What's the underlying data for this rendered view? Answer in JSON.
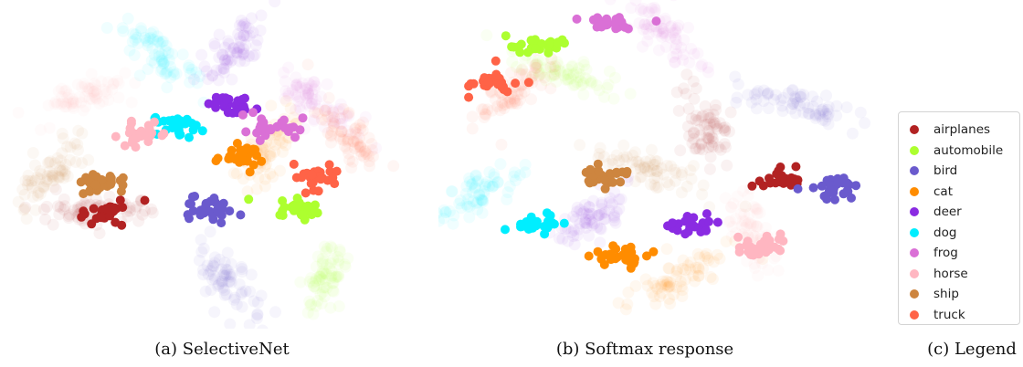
{
  "chart_data": [
    {
      "type": "scatter",
      "caption": "(a) SelectiveNet",
      "x_range": [
        -100,
        100
      ],
      "y_range": [
        -100,
        100
      ],
      "grid": false,
      "clusters": [
        {
          "class": "airplanes",
          "faint": [
            -55,
            -30
          ],
          "bright": [
            -52,
            -32
          ]
        },
        {
          "class": "automobile",
          "faint": [
            55,
            -75
          ],
          "bright": [
            42,
            -28
          ]
        },
        {
          "class": "bird",
          "faint": [
            5,
            -75
          ],
          "bright": [
            -3,
            -30
          ]
        },
        {
          "class": "cat",
          "faint": [
            26,
            10
          ],
          "bright": [
            12,
            5
          ]
        },
        {
          "class": "deer",
          "faint": [
            10,
            75
          ],
          "bright": [
            8,
            40
          ]
        },
        {
          "class": "dog",
          "faint": [
            -28,
            72
          ],
          "bright": [
            -18,
            25
          ]
        },
        {
          "class": "frog",
          "faint": [
            50,
            40
          ],
          "bright": [
            25,
            25
          ]
        },
        {
          "class": "horse",
          "faint": [
            -65,
            45
          ],
          "bright": [
            -35,
            20
          ]
        },
        {
          "class": "ship",
          "faint": [
            -80,
            -5
          ],
          "bright": [
            -55,
            -12
          ]
        },
        {
          "class": "truck",
          "faint": [
            65,
            20
          ],
          "bright": [
            50,
            -8
          ]
        }
      ]
    },
    {
      "type": "scatter",
      "caption": "(b) Softmax response",
      "x_range": [
        -100,
        100
      ],
      "y_range": [
        -100,
        100
      ],
      "grid": false,
      "clusters": [
        {
          "class": "airplanes",
          "faint": [
            18,
            25
          ],
          "bright": [
            55,
            -10
          ]
        },
        {
          "class": "automobile",
          "faint": [
            -48,
            60
          ],
          "bright": [
            -60,
            78
          ]
        },
        {
          "class": "bird",
          "faint": [
            60,
            40
          ],
          "bright": [
            78,
            -15
          ]
        },
        {
          "class": "cat",
          "faint": [
            5,
            -75
          ],
          "bright": [
            -22,
            -60
          ]
        },
        {
          "class": "deer",
          "faint": [
            -35,
            -35
          ],
          "bright": [
            10,
            -40
          ]
        },
        {
          "class": "dog",
          "faint": [
            -90,
            -20
          ],
          "bright": [
            -60,
            -40
          ]
        },
        {
          "class": "frog",
          "faint": [
            0,
            85
          ],
          "bright": [
            -25,
            92
          ]
        },
        {
          "class": "horse",
          "faint": [
            40,
            -45
          ],
          "bright": [
            45,
            -55
          ]
        },
        {
          "class": "ship",
          "faint": [
            -8,
            -5
          ],
          "bright": [
            -30,
            -8
          ]
        },
        {
          "class": "truck",
          "faint": [
            -70,
            50
          ],
          "bright": [
            -80,
            55
          ]
        }
      ]
    }
  ],
  "legend": {
    "entries": [
      {
        "label": "airplanes",
        "color": "#b22222"
      },
      {
        "label": "automobile",
        "color": "#adff2f"
      },
      {
        "label": "bird",
        "color": "#6a5acd"
      },
      {
        "label": "cat",
        "color": "#ff8c00"
      },
      {
        "label": "deer",
        "color": "#8a2be2"
      },
      {
        "label": "dog",
        "color": "#00eeff"
      },
      {
        "label": "frog",
        "color": "#da70d6"
      },
      {
        "label": "horse",
        "color": "#ffb6c1"
      },
      {
        "label": "ship",
        "color": "#cd853f"
      },
      {
        "label": "truck",
        "color": "#ff6347"
      }
    ]
  },
  "captions": {
    "a": "(a) SelectiveNet",
    "b": "(b) Softmax response",
    "c": "(c) Legend"
  }
}
